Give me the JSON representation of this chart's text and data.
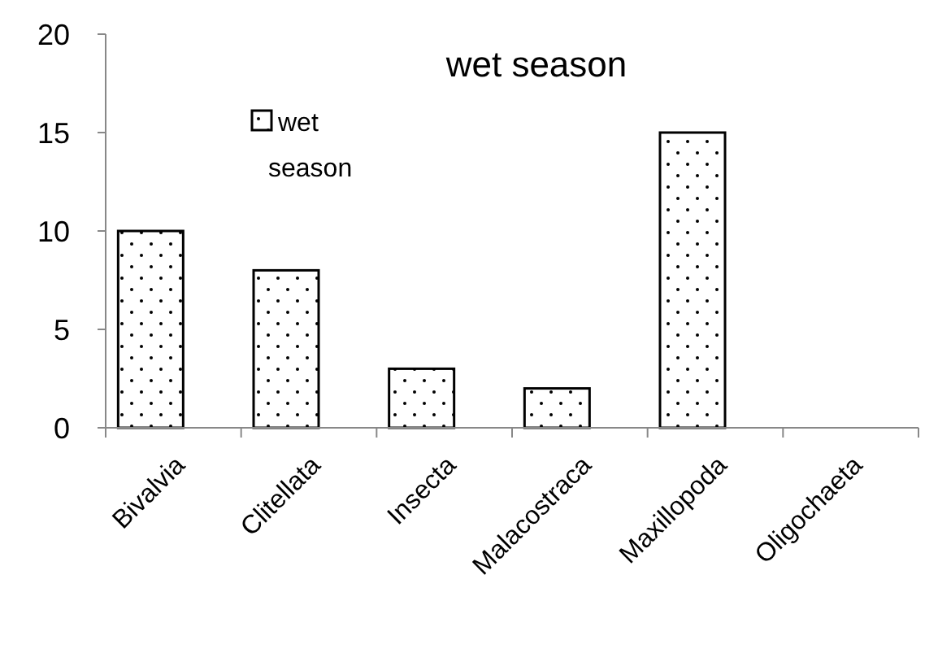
{
  "chart_data": {
    "type": "bar",
    "title": "wet season",
    "categories": [
      "Bivalvia",
      "Clitellata",
      "Insecta",
      "Malacostraca",
      "Maxillopoda",
      "Oligochaeta"
    ],
    "series": [
      {
        "name": "wet\nseason",
        "color": "#000000",
        "values": [
          10,
          8,
          3,
          2,
          15,
          0
        ]
      }
    ],
    "ylim": [
      0,
      20
    ],
    "yticks": [
      0,
      5,
      10,
      15,
      20
    ],
    "grid": false,
    "legend": "top left"
  }
}
